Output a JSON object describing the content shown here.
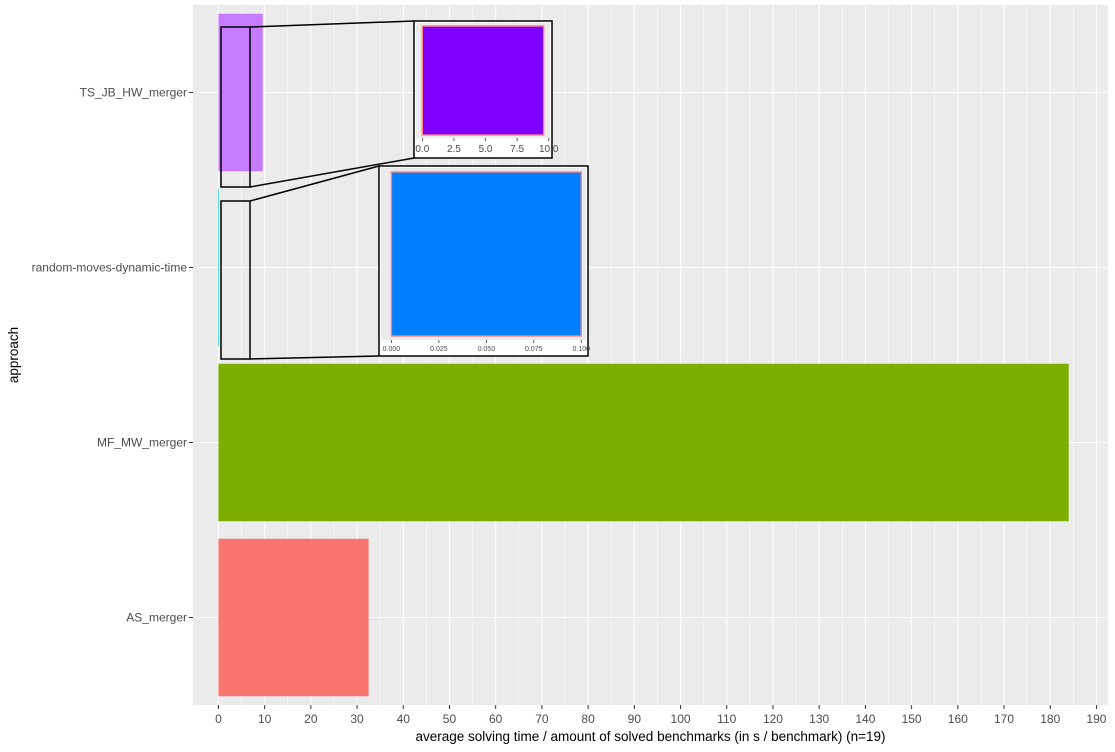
{
  "chart_data": {
    "type": "bar",
    "orientation": "horizontal",
    "xlabel": "average solving time / amount of solved benchmarks (in s / benchmark) (n=19)",
    "ylabel": "approach",
    "xlim": [
      -5.5,
      192.5
    ],
    "xticks": [
      0,
      10,
      20,
      30,
      40,
      50,
      60,
      70,
      80,
      90,
      100,
      110,
      120,
      130,
      140,
      150,
      160,
      170,
      180,
      190
    ],
    "grid": true,
    "legend": "none",
    "categories": [
      "AS_merger",
      "MF_MW_merger",
      "random-moves-dynamic-time",
      "TS_JB_HW_merger"
    ],
    "values": [
      32.5,
      184.0,
      0.1,
      9.6
    ],
    "colors": [
      "#F8766D",
      "#7CAE00",
      "#00BFC4",
      "#C77CFF"
    ],
    "insets": [
      {
        "category": "TS_JB_HW_merger",
        "xlim": [
          -0.5,
          10.1
        ],
        "xticks": [
          "0.0",
          "2.5",
          "5.0",
          "7.5",
          "10.0"
        ],
        "xtick_values": [
          0,
          2.5,
          5,
          7.5,
          10
        ],
        "fill": "#8000FF",
        "value": 9.6
      },
      {
        "category": "random-moves-dynamic-time",
        "xlim": [
          -0.0055,
          0.1025
        ],
        "xticks": [
          "0.000",
          "0.025",
          "0.050",
          "0.075",
          "0.100"
        ],
        "xtick_values": [
          0,
          0.025,
          0.05,
          0.075,
          0.1
        ],
        "fill": "#0080FF",
        "value": 0.1
      }
    ]
  }
}
